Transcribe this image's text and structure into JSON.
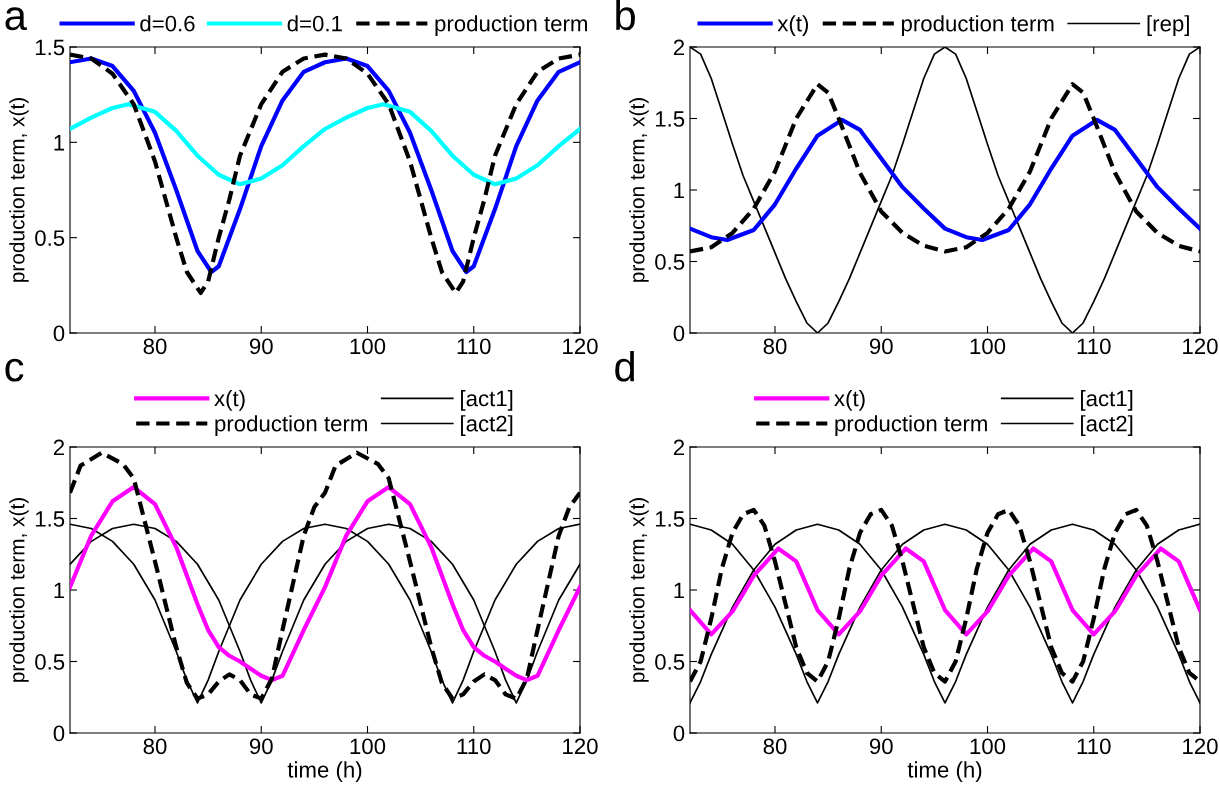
{
  "chart_data": [
    {
      "type": "line",
      "title": "a",
      "ylabel": "production term, x(t)",
      "xlim": [
        72,
        120
      ],
      "xticks": [
        80,
        90,
        100,
        110,
        120
      ],
      "ylim": [
        0,
        1.5
      ],
      "yticks": [
        0,
        0.5,
        1,
        1.5
      ],
      "legend": "top",
      "grid": false,
      "series": [
        {
          "name": "d=0.6",
          "color": "#0000ff",
          "x": [
            72,
            74,
            76,
            78,
            80,
            82,
            84,
            85.3,
            86,
            88,
            90,
            92,
            94,
            96,
            98,
            100,
            102,
            104,
            106,
            108,
            109.3,
            110,
            112,
            114,
            116,
            118,
            120
          ],
          "values": [
            1.42,
            1.44,
            1.4,
            1.27,
            1.05,
            0.75,
            0.43,
            0.32,
            0.35,
            0.65,
            0.98,
            1.22,
            1.37,
            1.42,
            1.44,
            1.4,
            1.27,
            1.05,
            0.75,
            0.43,
            0.32,
            0.35,
            0.65,
            0.98,
            1.22,
            1.37,
            1.42
          ]
        },
        {
          "name": "d=0.1",
          "color": "#00ffff",
          "x": [
            72,
            74,
            76,
            77.5,
            80,
            82,
            84,
            86,
            88,
            90,
            92,
            94,
            96,
            98,
            100,
            101.5,
            104,
            106,
            108,
            110,
            112,
            114,
            116,
            118,
            120
          ],
          "values": [
            1.07,
            1.13,
            1.18,
            1.2,
            1.16,
            1.06,
            0.93,
            0.83,
            0.78,
            0.81,
            0.88,
            0.98,
            1.07,
            1.13,
            1.18,
            1.2,
            1.16,
            1.06,
            0.93,
            0.83,
            0.78,
            0.81,
            0.88,
            0.98,
            1.07
          ]
        },
        {
          "name": "production term",
          "color": "#000000",
          "line_style": "dashed",
          "x": [
            72,
            74,
            76,
            78,
            80,
            82,
            83,
            84.3,
            85,
            86,
            87,
            88,
            90,
            92,
            94,
            96,
            98,
            100,
            102,
            104,
            106,
            107,
            108.3,
            109,
            110,
            111,
            112,
            114,
            116,
            118,
            120
          ],
          "values": [
            1.46,
            1.44,
            1.36,
            1.2,
            0.9,
            0.5,
            0.32,
            0.21,
            0.27,
            0.5,
            0.7,
            0.93,
            1.2,
            1.37,
            1.44,
            1.46,
            1.44,
            1.36,
            1.2,
            0.9,
            0.5,
            0.32,
            0.21,
            0.27,
            0.5,
            0.7,
            0.93,
            1.2,
            1.37,
            1.44,
            1.46
          ]
        }
      ]
    },
    {
      "type": "line",
      "title": "b",
      "ylabel": "production term, x(t)",
      "xlim": [
        72,
        120
      ],
      "xticks": [
        80,
        90,
        100,
        110,
        120
      ],
      "ylim": [
        0,
        2
      ],
      "yticks": [
        0,
        0.5,
        1,
        1.5,
        2
      ],
      "legend": "top",
      "grid": false,
      "series": [
        {
          "name": "x(t)",
          "color": "#0000ff",
          "x": [
            72,
            74,
            75.5,
            78,
            80,
            82,
            84,
            86.3,
            88,
            90,
            92,
            94,
            96,
            98,
            99.5,
            102,
            104,
            106,
            108,
            110.3,
            112,
            114,
            116,
            118,
            120
          ],
          "values": [
            0.73,
            0.67,
            0.65,
            0.72,
            0.9,
            1.15,
            1.38,
            1.49,
            1.42,
            1.22,
            1.02,
            0.87,
            0.73,
            0.67,
            0.65,
            0.72,
            0.9,
            1.15,
            1.38,
            1.49,
            1.42,
            1.22,
            1.02,
            0.87,
            0.73
          ]
        },
        {
          "name": "production term",
          "color": "#000000",
          "line_style": "dashed",
          "x": [
            72,
            74,
            76,
            78,
            80,
            82,
            84,
            85,
            86,
            88,
            90,
            92,
            94,
            96,
            98,
            100,
            102,
            104,
            106,
            108,
            109,
            110,
            112,
            114,
            116,
            118,
            120
          ],
          "values": [
            0.57,
            0.6,
            0.7,
            0.87,
            1.13,
            1.5,
            1.74,
            1.68,
            1.5,
            1.12,
            0.85,
            0.7,
            0.61,
            0.57,
            0.6,
            0.7,
            0.87,
            1.13,
            1.5,
            1.74,
            1.68,
            1.5,
            1.12,
            0.85,
            0.7,
            0.61,
            0.57
          ]
        },
        {
          "name": "[rep]",
          "color": "#000000",
          "x": [
            72,
            73,
            74,
            75,
            76,
            77,
            78,
            79,
            80,
            81,
            82,
            83,
            84,
            85,
            86,
            87,
            88,
            89,
            90,
            91,
            92,
            93,
            94,
            95,
            96,
            97,
            98,
            99,
            100,
            101,
            102,
            103,
            104,
            105,
            106,
            107,
            108,
            109,
            110,
            111,
            112,
            113,
            114,
            115,
            116,
            117,
            118,
            119,
            120
          ],
          "values": [
            2.0,
            1.95,
            1.78,
            1.55,
            1.32,
            1.1,
            0.92,
            0.74,
            0.56,
            0.38,
            0.22,
            0.07,
            0.0,
            0.07,
            0.22,
            0.38,
            0.56,
            0.74,
            0.92,
            1.1,
            1.32,
            1.55,
            1.78,
            1.95,
            2.0,
            1.95,
            1.78,
            1.55,
            1.32,
            1.1,
            0.92,
            0.74,
            0.56,
            0.38,
            0.22,
            0.07,
            0.0,
            0.07,
            0.22,
            0.38,
            0.56,
            0.74,
            0.92,
            1.1,
            1.32,
            1.55,
            1.78,
            1.95,
            2.0
          ]
        }
      ]
    },
    {
      "type": "line",
      "title": "c",
      "xlabel": "time (h)",
      "ylabel": "production term, x(t)",
      "xlim": [
        72,
        120
      ],
      "xticks": [
        80,
        90,
        100,
        110,
        120
      ],
      "ylim": [
        0,
        2
      ],
      "yticks": [
        0,
        0.5,
        1,
        1.5,
        2
      ],
      "legend": "top",
      "grid": false,
      "series": [
        {
          "name": "x(t)",
          "color": "#ff00ff",
          "x": [
            72,
            74,
            76,
            78,
            80,
            82,
            84,
            85,
            86,
            87,
            88,
            89,
            90,
            91,
            92,
            94,
            96,
            98,
            100,
            102,
            104,
            106,
            108,
            109,
            110,
            111,
            112,
            113,
            114,
            115,
            116,
            118,
            120
          ],
          "values": [
            1.02,
            1.38,
            1.62,
            1.72,
            1.6,
            1.3,
            0.9,
            0.72,
            0.6,
            0.54,
            0.5,
            0.45,
            0.4,
            0.37,
            0.4,
            0.72,
            1.02,
            1.38,
            1.62,
            1.72,
            1.6,
            1.3,
            0.9,
            0.72,
            0.6,
            0.54,
            0.5,
            0.45,
            0.4,
            0.37,
            0.4,
            0.72,
            1.02
          ]
        },
        {
          "name": "[act1]",
          "color": "#000000",
          "x": [
            72,
            74,
            76,
            78,
            80,
            82,
            83,
            84,
            85,
            86,
            88,
            90,
            92,
            94,
            96,
            98,
            100,
            102,
            104,
            106,
            107,
            108,
            109,
            110,
            112,
            114,
            116,
            118,
            120
          ],
          "values": [
            1.46,
            1.43,
            1.34,
            1.18,
            0.93,
            0.57,
            0.37,
            0.21,
            0.37,
            0.57,
            0.93,
            1.18,
            1.34,
            1.43,
            1.46,
            1.43,
            1.34,
            1.18,
            0.93,
            0.57,
            0.37,
            0.21,
            0.37,
            0.57,
            0.93,
            1.18,
            1.34,
            1.43,
            1.46
          ]
        },
        {
          "name": "production term",
          "color": "#000000",
          "line_style": "dashed",
          "x": [
            72,
            73,
            75,
            77,
            78,
            80,
            82,
            83,
            84,
            85,
            86,
            87,
            88,
            89,
            90,
            91,
            92,
            93,
            94,
            95,
            96,
            97,
            99,
            101,
            102,
            104,
            106,
            107,
            108,
            109,
            110,
            111,
            112,
            113,
            114,
            115,
            116,
            117,
            118,
            119,
            120
          ],
          "values": [
            1.68,
            1.87,
            1.96,
            1.88,
            1.78,
            1.2,
            0.6,
            0.35,
            0.24,
            0.27,
            0.36,
            0.41,
            0.37,
            0.27,
            0.24,
            0.38,
            0.72,
            1.05,
            1.38,
            1.58,
            1.68,
            1.87,
            1.96,
            1.88,
            1.78,
            1.2,
            0.6,
            0.35,
            0.24,
            0.27,
            0.36,
            0.41,
            0.37,
            0.27,
            0.24,
            0.38,
            0.72,
            1.05,
            1.38,
            1.58,
            1.68
          ]
        },
        {
          "name": "[act2]",
          "color": "#000000",
          "x": [
            72,
            74,
            76,
            78,
            80,
            82,
            84,
            86,
            88,
            89,
            90,
            91,
            92,
            94,
            96,
            98,
            100,
            102,
            104,
            106,
            108,
            110,
            112,
            113,
            114,
            115,
            116,
            118,
            120
          ],
          "values": [
            1.18,
            1.34,
            1.43,
            1.46,
            1.43,
            1.34,
            1.18,
            0.93,
            0.57,
            0.37,
            0.21,
            0.37,
            0.57,
            0.93,
            1.18,
            1.34,
            1.43,
            1.46,
            1.43,
            1.34,
            1.18,
            0.93,
            0.57,
            0.37,
            0.21,
            0.37,
            0.57,
            0.93,
            1.18
          ]
        }
      ]
    },
    {
      "type": "line",
      "title": "d",
      "xlabel": "time (h)",
      "ylabel": "production term, x(t)",
      "xlim": [
        72,
        120
      ],
      "xticks": [
        80,
        90,
        100,
        110,
        120
      ],
      "ylim": [
        0,
        2
      ],
      "yticks": [
        0,
        0.5,
        1,
        1.5,
        2
      ],
      "legend": "top",
      "grid": false,
      "series": [
        {
          "name": "x(t)",
          "color": "#ff00ff",
          "x": [
            72,
            74,
            76,
            78,
            80.3,
            82,
            84,
            86,
            88,
            90,
            92.3,
            94,
            96,
            98,
            100,
            102,
            104.3,
            106,
            108,
            110,
            112,
            114,
            116.3,
            118,
            120
          ],
          "values": [
            0.86,
            0.69,
            0.85,
            1.1,
            1.29,
            1.2,
            0.86,
            0.69,
            0.85,
            1.1,
            1.29,
            1.2,
            0.86,
            0.69,
            0.85,
            1.1,
            1.29,
            1.2,
            0.86,
            0.69,
            0.85,
            1.1,
            1.29,
            1.2,
            0.86
          ]
        },
        {
          "name": "[act1]",
          "color": "#000000",
          "x": [
            72,
            74,
            76,
            78,
            80,
            82,
            83,
            84,
            85,
            86,
            88,
            90,
            92,
            94,
            96,
            98,
            100,
            102,
            104,
            106,
            107,
            108,
            109,
            110,
            112,
            114,
            116,
            118,
            120
          ],
          "values": [
            1.46,
            1.42,
            1.32,
            1.14,
            0.88,
            0.55,
            0.36,
            0.21,
            0.36,
            0.55,
            0.88,
            1.14,
            1.32,
            1.42,
            1.46,
            1.42,
            1.32,
            1.14,
            0.88,
            0.55,
            0.36,
            0.21,
            0.36,
            0.55,
            0.88,
            1.14,
            1.32,
            1.42,
            1.46
          ]
        },
        {
          "name": "production term",
          "color": "#000000",
          "line_style": "dashed",
          "x": [
            72,
            73,
            74,
            75,
            76,
            77,
            78,
            79,
            80,
            81,
            82,
            83,
            84,
            85,
            86,
            87,
            88,
            89,
            90,
            91,
            92,
            93,
            94,
            95,
            96,
            97,
            98,
            99,
            100,
            101,
            102,
            103,
            104,
            105,
            106,
            107,
            108,
            109,
            110,
            111,
            112,
            113,
            114,
            115,
            116,
            117,
            118,
            119,
            120
          ],
          "values": [
            0.36,
            0.5,
            0.8,
            1.15,
            1.4,
            1.53,
            1.56,
            1.45,
            1.2,
            0.9,
            0.6,
            0.42,
            0.36,
            0.5,
            0.8,
            1.15,
            1.4,
            1.53,
            1.56,
            1.45,
            1.2,
            0.9,
            0.6,
            0.42,
            0.36,
            0.5,
            0.8,
            1.15,
            1.4,
            1.53,
            1.56,
            1.45,
            1.2,
            0.9,
            0.6,
            0.42,
            0.36,
            0.5,
            0.8,
            1.15,
            1.4,
            1.53,
            1.56,
            1.45,
            1.2,
            0.9,
            0.6,
            0.42,
            0.36
          ]
        },
        {
          "name": "[act2]",
          "color": "#000000",
          "x": [
            72,
            73,
            74,
            76,
            78,
            80,
            82,
            84,
            86,
            88,
            90,
            92,
            94,
            95,
            96,
            97,
            98,
            100,
            102,
            104,
            106,
            108,
            110,
            112,
            114,
            116,
            118,
            119,
            120
          ],
          "values": [
            0.21,
            0.36,
            0.55,
            0.88,
            1.14,
            1.32,
            1.42,
            1.46,
            1.42,
            1.32,
            1.14,
            0.88,
            0.55,
            0.36,
            0.21,
            0.36,
            0.55,
            0.88,
            1.14,
            1.32,
            1.42,
            1.46,
            1.42,
            1.32,
            1.14,
            0.88,
            0.55,
            0.36,
            0.21
          ]
        }
      ]
    }
  ]
}
